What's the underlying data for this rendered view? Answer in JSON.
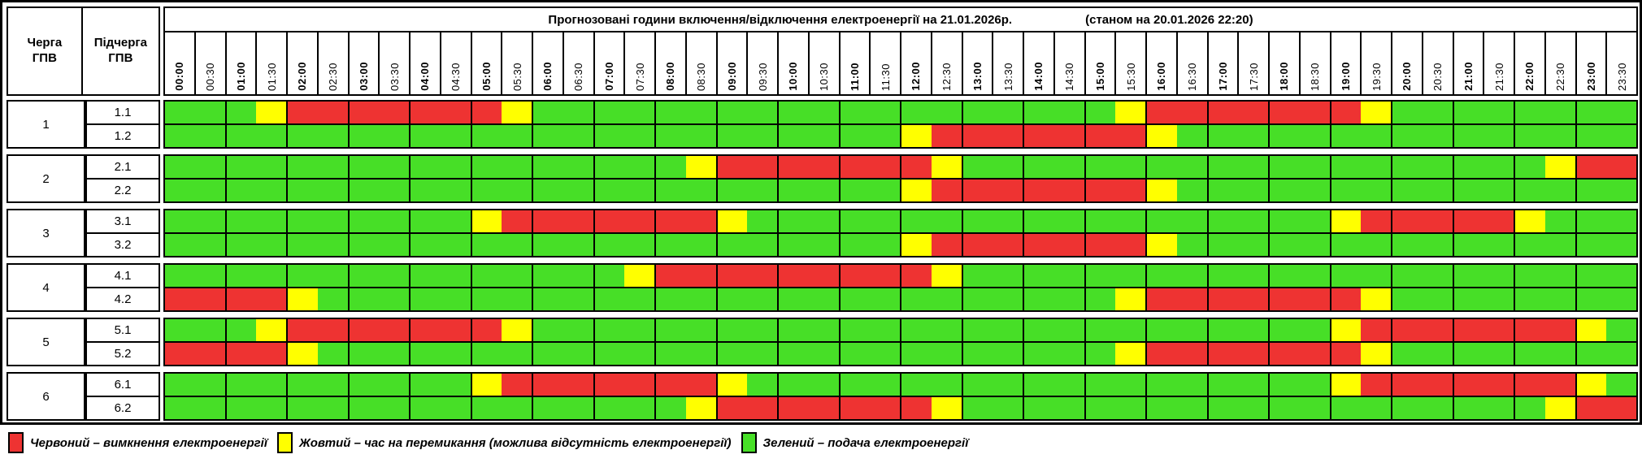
{
  "title": {
    "main": "Прогнозовані години включення/відключення електроенергії на 21.01.2026р.",
    "asof": "(станом на 20.01.2026 22:20)"
  },
  "header": {
    "queue_col": "Черга ГПВ",
    "subqueue_col": "Підчерга ГПВ"
  },
  "time_slots": [
    "00:00",
    "00:30",
    "01:00",
    "01:30",
    "02:00",
    "02:30",
    "03:00",
    "03:30",
    "04:00",
    "04:30",
    "05:00",
    "05:30",
    "06:00",
    "06:30",
    "07:00",
    "07:30",
    "08:00",
    "08:30",
    "09:00",
    "09:30",
    "10:00",
    "10:30",
    "11:00",
    "11:30",
    "12:00",
    "12:30",
    "13:00",
    "13:30",
    "14:00",
    "14:30",
    "15:00",
    "15:30",
    "16:00",
    "16:30",
    "17:00",
    "17:30",
    "18:00",
    "18:30",
    "19:00",
    "19:30",
    "20:00",
    "20:30",
    "21:00",
    "21:30",
    "22:00",
    "22:30",
    "23:00",
    "23:30"
  ],
  "colors": {
    "G": "#47DF27",
    "Y": "#FFFF00",
    "R": "#EE3332"
  },
  "queues": [
    {
      "queue": "1",
      "subqueues": [
        {
          "label": "1.1",
          "slots": "GGGYRRRRRRRYGGGGGGGGGGGGGGGGGGGYRRRRRRRYGGGGGGGG"
        },
        {
          "label": "1.2",
          "slots": "GGGGGGGGGGGGGGGGGGGGGGGGYRRRRRRRYGGGGGGGGGGGGGGG"
        }
      ]
    },
    {
      "queue": "2",
      "subqueues": [
        {
          "label": "2.1",
          "slots": "GGGGGGGGGGGGGGGGGYRRRRRRRYGGGGGGGGGGGGGGGGGGGYRR"
        },
        {
          "label": "2.2",
          "slots": "GGGGGGGGGGGGGGGGGGGGGGGGYRRRRRRRYGGGGGGGGGGGGGGG"
        }
      ]
    },
    {
      "queue": "3",
      "subqueues": [
        {
          "label": "3.1",
          "slots": "GGGGGGGGGGYRRRRRRRYGGGGGGGGGGGGGGGGGGGYRRRRRYGGG"
        },
        {
          "label": "3.2",
          "slots": "GGGGGGGGGGGGGGGGGGGGGGGGYRRRRRRRYGGGGGGGGGGGGGGG"
        }
      ]
    },
    {
      "queue": "4",
      "subqueues": [
        {
          "label": "4.1",
          "slots": "GGGGGGGGGGGGGGGYRRRRRRRRRYGGGGGGGGGGGGGGGGGGGGGG"
        },
        {
          "label": "4.2",
          "slots": "RRRRYGGGGGGGGGGGGGGGGGGGGGGGGGGYRRRRRRRYGGGGGGGG"
        }
      ]
    },
    {
      "queue": "5",
      "subqueues": [
        {
          "label": "5.1",
          "slots": "GGGYRRRRRRRYGGGGGGGGGGGGGGGGGGGGGGGGGGYRRRRRRRYG"
        },
        {
          "label": "5.2",
          "slots": "RRRRYGGGGGGGGGGGGGGGGGGGGGGGGGGYRRRRRRRYGGGGGGGG"
        }
      ]
    },
    {
      "queue": "6",
      "subqueues": [
        {
          "label": "6.1",
          "slots": "GGGGGGGGGGYRRRRRRRYGGGGGGGGGGGGGGGGGGGYRRRRRRRYG"
        },
        {
          "label": "6.2",
          "slots": "GGGGGGGGGGGGGGGGGYRRRRRRRYGGGGGGGGGGGGGGGGGGGYRR"
        }
      ]
    }
  ],
  "legend": [
    {
      "key": "R",
      "label": "Червоний – вимкнення електроенергії"
    },
    {
      "key": "Y",
      "label": "Жовтий – час на перемикання (можлива відсутність електроенергії)"
    },
    {
      "key": "G",
      "label": "Зелений – подача електроенергії"
    }
  ]
}
